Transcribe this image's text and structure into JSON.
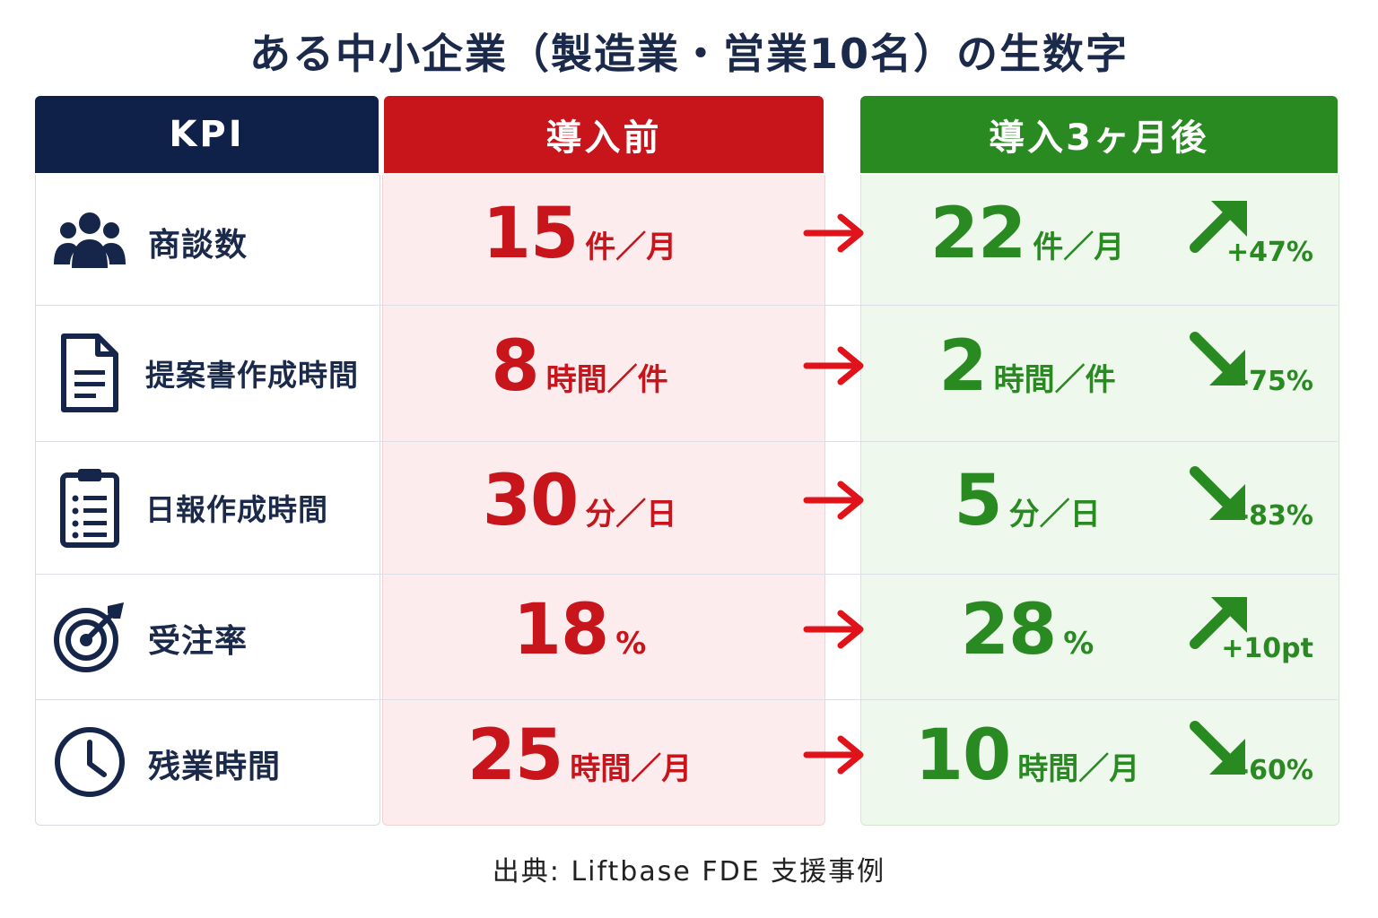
{
  "title": "ある中小企業（製造業・営業10名）の生数字",
  "headers": {
    "kpi": "KPI",
    "before": "導入前",
    "after": "導入3ヶ月後"
  },
  "colors": {
    "navy": "#0f2148",
    "red": "#c8141b",
    "green": "#2a8a22"
  },
  "source": "出典: Liftbase FDE 支援事例",
  "chart_data": {
    "type": "table",
    "columns": [
      "KPI",
      "導入前",
      "導入3ヶ月後"
    ],
    "rows": [
      {
        "kpi": "商談数",
        "icon": "people-icon",
        "before": {
          "num": "15",
          "unit": "件／月"
        },
        "after": {
          "num": "22",
          "unit": "件／月"
        },
        "change": "+47%",
        "direction": "up"
      },
      {
        "kpi": "提案書作成時間",
        "icon": "document-icon",
        "before": {
          "num": "8",
          "unit": "時間／件"
        },
        "after": {
          "num": "2",
          "unit": "時間／件"
        },
        "change": "-75%",
        "direction": "down"
      },
      {
        "kpi": "日報作成時間",
        "icon": "clipboard-icon",
        "before": {
          "num": "30",
          "unit": "分／日"
        },
        "after": {
          "num": "5",
          "unit": "分／日"
        },
        "change": "-83%",
        "direction": "down"
      },
      {
        "kpi": "受注率",
        "icon": "target-icon",
        "before": {
          "num": "18",
          "unit": "%"
        },
        "after": {
          "num": "28",
          "unit": "%"
        },
        "change": "+10pt",
        "direction": "up"
      },
      {
        "kpi": "残業時間",
        "icon": "clock-icon",
        "before": {
          "num": "25",
          "unit": "時間／月"
        },
        "after": {
          "num": "10",
          "unit": "時間／月"
        },
        "change": "-60%",
        "direction": "down"
      }
    ]
  }
}
